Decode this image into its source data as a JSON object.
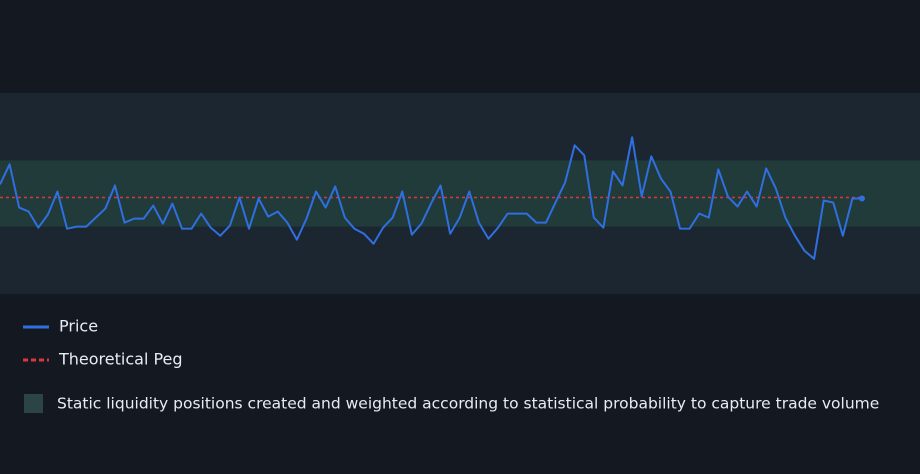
{
  "chart_data": {
    "type": "line",
    "ylim": [
      -100,
      100
    ],
    "outer_band": [
      -100,
      100
    ],
    "inner_band": [
      -33,
      33
    ],
    "peg": -4,
    "series": [
      {
        "name": "Price",
        "color": "#2f6fe0",
        "values": [
          9,
          29,
          -14,
          -18,
          -34,
          -21,
          2,
          -35,
          -33,
          -33,
          -24,
          -15,
          8,
          -29,
          -25,
          -25,
          -12,
          -30,
          -10,
          -35,
          -35,
          -20,
          -34,
          -42,
          -32,
          -4,
          -35,
          -5,
          -23,
          -18,
          -29,
          -46,
          -25,
          2,
          -14,
          7,
          -24,
          -35,
          -40,
          -50,
          -34,
          -24,
          2,
          -41,
          -30,
          -10,
          8,
          -40,
          -24,
          2,
          -29,
          -45,
          -34,
          -20,
          -20,
          -20,
          -29,
          -29,
          -9,
          11,
          48,
          38,
          -24,
          -34,
          22,
          8,
          56,
          -3,
          37,
          15,
          2,
          -35,
          -35,
          -20,
          -24,
          24,
          -3,
          -13,
          2,
          -13,
          25,
          5,
          -24,
          -42,
          -57,
          -65,
          -7,
          -9,
          -42,
          -5,
          -5
        ]
      },
      {
        "name": "Theoretical Peg",
        "color": "#d9363e"
      }
    ],
    "band_label": "Static liquidity positions created and weighted according to statistical probability to capture trade volume",
    "band_colors": {
      "outer": "#1c2630",
      "inner": "#213a3a",
      "legend": "#2a4543"
    }
  }
}
